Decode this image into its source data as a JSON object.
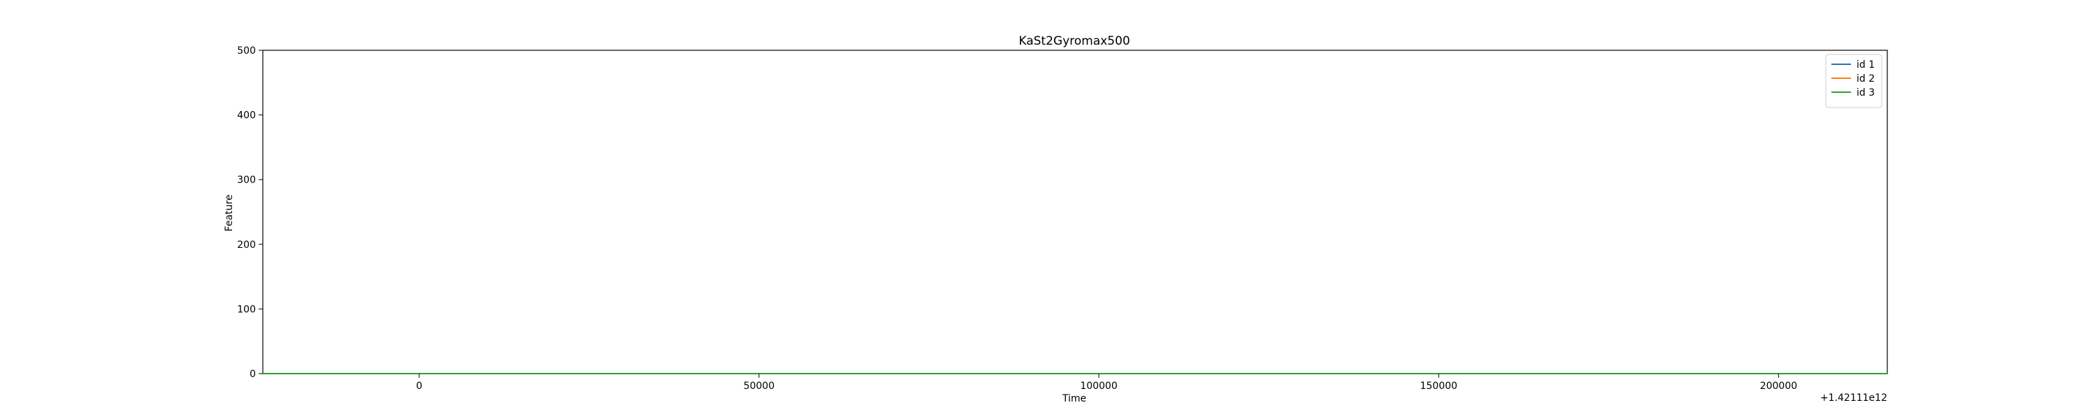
{
  "chart_data": {
    "type": "line",
    "title": "KaSt2Gyromax500",
    "xlabel": "Time",
    "ylabel": "Feature",
    "x_offset_label": "+1.42111e12",
    "xlim": [
      -23000,
      216000
    ],
    "ylim": [
      0,
      500
    ],
    "xticks": [
      0,
      50000,
      100000,
      150000,
      200000
    ],
    "xtick_labels": [
      "0",
      "50000",
      "100000",
      "150000",
      "200000"
    ],
    "yticks": [
      0,
      100,
      200,
      300,
      400,
      500
    ],
    "ytick_labels": [
      "0",
      "100",
      "200",
      "300",
      "400",
      "500"
    ],
    "grid": false,
    "legend_position": "top-right",
    "series": [
      {
        "name": "id 1",
        "color": "#1f77b4",
        "x": [
          -23000,
          216000
        ],
        "y": [
          0,
          0
        ]
      },
      {
        "name": "id 2",
        "color": "#ff7f0e",
        "x": [
          -23000,
          216000
        ],
        "y": [
          0,
          0
        ]
      },
      {
        "name": "id 3",
        "color": "#2ca02c",
        "x": [
          -23000,
          216000
        ],
        "y": [
          0,
          0
        ]
      }
    ]
  }
}
